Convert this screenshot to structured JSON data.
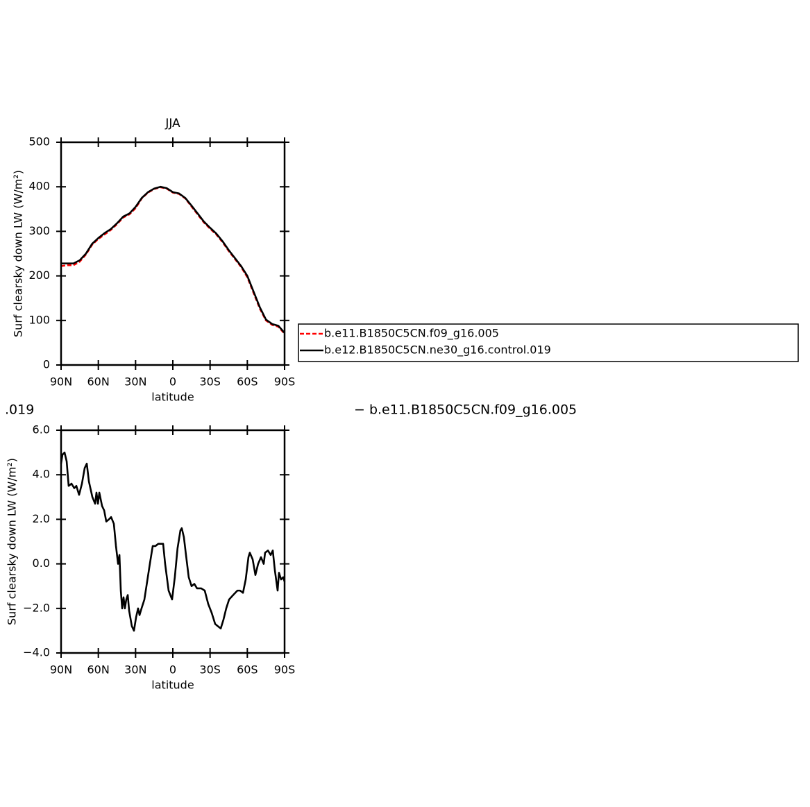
{
  "chart_data": [
    {
      "type": "line",
      "title": "JJA",
      "x_label": "latitude",
      "y_label": "Surf clearsky down LW (W/m²)",
      "x": [
        90,
        85,
        80,
        75,
        70,
        65,
        60,
        55,
        50,
        45,
        40,
        35,
        30,
        25,
        20,
        15,
        10,
        5,
        0,
        -5,
        -10,
        -15,
        -20,
        -25,
        -30,
        -35,
        -40,
        -45,
        -50,
        -55,
        -60,
        -65,
        -70,
        -75,
        -80,
        -85,
        -90
      ],
      "xlim": [
        90,
        -90
      ],
      "xticks": [
        {
          "value": 90,
          "label": "90N"
        },
        {
          "value": 60,
          "label": "60N"
        },
        {
          "value": 30,
          "label": "30N"
        },
        0,
        {
          "value": -30,
          "label": "30S"
        },
        {
          "value": -60,
          "label": "60S"
        },
        {
          "value": -90,
          "label": "90S"
        }
      ],
      "ylim": [
        0,
        500
      ],
      "yticks": [
        0,
        100,
        200,
        300,
        400,
        500
      ],
      "series": [
        {
          "name": "b.e11.B1850C5CN.f09_g16.005",
          "color": "#ff0000",
          "style": "dashed",
          "values": [
            222,
            224,
            224,
            232,
            248,
            270,
            283,
            293,
            303,
            316,
            331,
            338,
            352,
            374,
            387,
            395,
            399,
            396,
            387,
            384,
            374,
            356,
            338,
            320,
            306,
            293,
            276,
            256,
            238,
            220,
            197,
            162,
            127,
            100,
            90,
            86,
            70
          ]
        },
        {
          "name": "b.e12.B1850C5CN.ne30_g16.control.019",
          "color": "#000000",
          "style": "solid",
          "values": [
            228,
            228,
            228,
            235,
            250,
            272,
            285,
            296,
            305,
            318,
            333,
            340,
            355,
            375,
            388,
            396,
            400,
            397,
            388,
            385,
            375,
            358,
            340,
            322,
            308,
            295,
            278,
            258,
            240,
            222,
            200,
            165,
            130,
            102,
            92,
            88,
            72
          ]
        }
      ],
      "legend": "right"
    },
    {
      "type": "line",
      "x_label": "latitude",
      "y_label": "Surf clearsky down LW (W/m²)",
      "x": [
        90,
        88.9,
        87.2,
        85.5,
        83.9,
        81.6,
        79.4,
        77.7,
        75.5,
        73.2,
        71,
        69.3,
        67.6,
        64.8,
        62.6,
        61.5,
        60.3,
        59.2,
        57,
        55.3,
        53.6,
        51.4,
        49.7,
        47.5,
        45.8,
        44.1,
        43,
        41.9,
        40.8,
        39.7,
        38.6,
        37.5,
        36.3,
        35.2,
        33,
        31.3,
        29.6,
        28,
        26.8,
        25.2,
        22.9,
        20.7,
        18.5,
        16.2,
        14,
        11.7,
        9.5,
        7.8,
        6.2,
        3.4,
        0.6,
        -1.6,
        -3.8,
        -6.1,
        -7.2,
        -8.9,
        -10.6,
        -12.8,
        -15.1,
        -17.3,
        -19.5,
        -22.9,
        -25.7,
        -28.5,
        -31.3,
        -34.1,
        -36.3,
        -38.6,
        -40.8,
        -43,
        -45.3,
        -48.6,
        -52,
        -54.2,
        -56.5,
        -58.7,
        -60.9,
        -62,
        -64.3,
        -66.5,
        -68.7,
        -71,
        -73.2,
        -74.3,
        -76.6,
        -78.8,
        -80.5,
        -82.2,
        -84.4,
        -85.5,
        -87.2,
        -88.9,
        -90
      ],
      "xlim": [
        90,
        -90
      ],
      "xticks": [
        {
          "value": 90,
          "label": "90N"
        },
        {
          "value": 60,
          "label": "60N"
        },
        {
          "value": 30,
          "label": "30N"
        },
        0,
        {
          "value": -30,
          "label": "30S"
        },
        {
          "value": -60,
          "label": "60S"
        },
        {
          "value": -90,
          "label": "90S"
        }
      ],
      "ylim": [
        -4,
        6
      ],
      "yticks": [
        {
          "value": -4,
          "label": "−4.0"
        },
        {
          "value": -2,
          "label": "−2.0"
        },
        {
          "value": 0,
          "label": "0.0"
        },
        {
          "value": 2,
          "label": "2.0"
        },
        {
          "value": 4,
          "label": "4.0"
        },
        {
          "value": 6,
          "label": "6.0"
        }
      ],
      "series": [
        {
          "color": "#000000",
          "style": "solid",
          "values": [
            4.5,
            4.9,
            5.0,
            4.6,
            3.5,
            3.6,
            3.4,
            3.5,
            3.1,
            3.6,
            4.3,
            4.5,
            3.7,
            3.0,
            2.7,
            3.2,
            2.7,
            3.2,
            2.6,
            2.4,
            1.9,
            2.0,
            2.1,
            1.8,
            0.8,
            0.0,
            0.4,
            -1.2,
            -2.0,
            -1.5,
            -2.0,
            -1.6,
            -1.4,
            -2.1,
            -2.8,
            -3.0,
            -2.4,
            -2.0,
            -2.3,
            -2.0,
            -1.6,
            -0.8,
            0.0,
            0.8,
            0.8,
            0.9,
            0.9,
            0.9,
            0.0,
            -1.2,
            -1.6,
            -0.6,
            0.7,
            1.5,
            1.6,
            1.2,
            0.4,
            -0.6,
            -1.0,
            -0.9,
            -1.1,
            -1.1,
            -1.2,
            -1.8,
            -2.2,
            -2.7,
            -2.8,
            -2.9,
            -2.5,
            -2.0,
            -1.6,
            -1.4,
            -1.2,
            -1.2,
            -1.3,
            -0.7,
            0.3,
            0.5,
            0.2,
            -0.5,
            0.0,
            0.3,
            0.0,
            0.5,
            0.6,
            0.4,
            0.6,
            -0.3,
            -1.2,
            -0.4,
            -0.7,
            -0.6,
            -0.8
          ]
        }
      ],
      "annotations": [
        ".019",
        "− b.e11.B1850C5CN.f09_g16.005"
      ]
    }
  ]
}
